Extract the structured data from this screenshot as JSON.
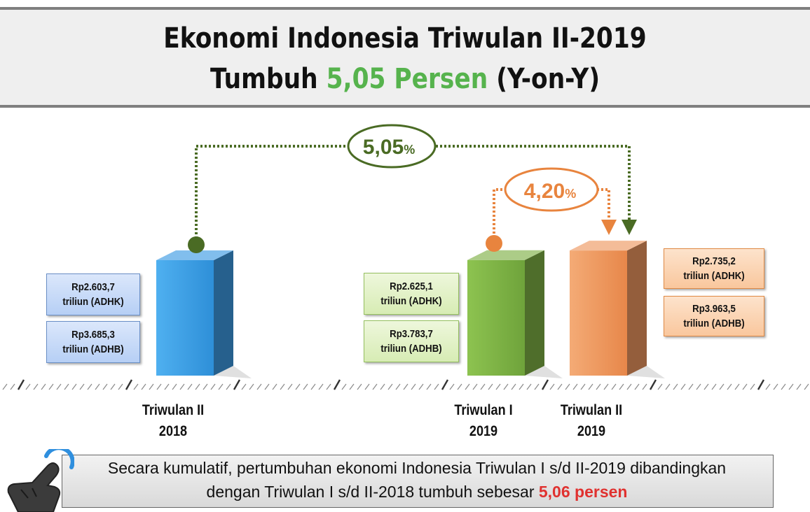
{
  "header": {
    "title_line1": "Ekonomi Indonesia Triwulan II-2019",
    "title_line2_prefix": "Tumbuh",
    "title_line2_highlight": "5,05 Persen",
    "title_line2_suffix": "(Y-on-Y)"
  },
  "chart_data": {
    "type": "bar",
    "categories": [
      "Triwulan II 2018",
      "Triwulan I 2019",
      "Triwulan II 2019"
    ],
    "series": [
      {
        "values": [
          2603.7,
          2625.1,
          2735.2
        ]
      },
      {
        "values": [
          3685.3,
          3783.7,
          3963.5
        ]
      }
    ],
    "bars": [
      {
        "category_line1": "Triwulan II",
        "category_line2": "2018",
        "adhk_line1": "Rp2.603,7",
        "adhk_line2": "triliun (ADHK)",
        "adhb_line1": "Rp3.685,3",
        "adhb_line2": "triliun (ADHB)",
        "color": "#3d9be4"
      },
      {
        "category_line1": "Triwulan I",
        "category_line2": "2019",
        "adhk_line1": "Rp2.625,1",
        "adhk_line2": "triliun (ADHK)",
        "adhb_line1": "Rp3.783,7",
        "adhb_line2": "triliun (ADHB)",
        "color": "#7fb146"
      },
      {
        "category_line1": "Triwulan II",
        "category_line2": "2019",
        "adhk_line1": "Rp2.735,2",
        "adhk_line2": "triliun (ADHK)",
        "adhb_line1": "Rp3.963,5",
        "adhb_line2": "triliun (ADHB)",
        "color": "#ee9860"
      }
    ],
    "annotations": [
      {
        "number": "5,05",
        "unit": "%",
        "from": "Triwulan II 2018",
        "to": "Triwulan II 2019",
        "color": "#4a6b24"
      },
      {
        "number": "4,20",
        "unit": "%",
        "from": "Triwulan I 2019",
        "to": "Triwulan II 2019",
        "color": "#e8843e"
      }
    ]
  },
  "note": {
    "line1": "Secara kumulatif, pertumbuhan ekonomi Indonesia Triwulan I s/d II-2019 dibandingkan",
    "line2_prefix": "dengan Triwulan I s/d II-2018 tumbuh sebesar",
    "line2_highlight": "5,06 persen"
  },
  "icons": {
    "pointer": "hand-pointer-icon"
  }
}
